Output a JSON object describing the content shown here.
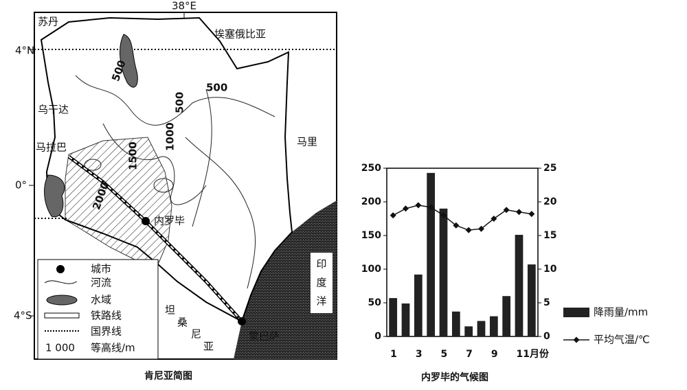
{
  "map": {
    "title": "肯尼亚简图",
    "coordinates": [
      "38°E",
      "4°N",
      "0°",
      "4°S"
    ],
    "places": [
      "苏丹",
      "埃塞俄比亚",
      "乌干达",
      "马拉巴",
      "马里",
      "内罗毕",
      "蒙巴萨"
    ],
    "ocean": [
      "印",
      "度",
      "洋"
    ],
    "tanzania": [
      "坦",
      "桑",
      "尼",
      "亚"
    ],
    "contours": [
      "500",
      "500",
      "500",
      "1000",
      "1500",
      "2000"
    ],
    "legend": [
      "城市",
      "河流",
      "水域",
      "铁路线",
      "国界线",
      "等高线/m"
    ],
    "legend_contour_sample": "1 000"
  },
  "chart_data": {
    "type": "climate",
    "title": "内罗毕的气候图",
    "categories": [
      "1",
      null,
      "3",
      null,
      "5",
      null,
      "7",
      null,
      "9",
      null,
      "11月份",
      null
    ],
    "series": [
      {
        "name": "降雨量/mm",
        "type": "bar",
        "color": "#222222",
        "values": [
          57,
          49,
          92,
          243,
          190,
          37,
          15,
          23,
          30,
          60,
          151,
          107
        ]
      },
      {
        "name": "平均气温/℃",
        "type": "line",
        "axis": "y2",
        "color": "#111111",
        "values": [
          18,
          19,
          19.5,
          19.2,
          18,
          16.5,
          15.8,
          16,
          17.5,
          18.8,
          18.5,
          18.2
        ]
      }
    ],
    "ylim": [
      0,
      250
    ],
    "yticks": [
      0,
      50,
      100,
      150,
      200,
      250
    ],
    "y2lim": [
      0,
      25
    ],
    "y2ticks": [
      0,
      5,
      10,
      15,
      20,
      25
    ],
    "grid": false
  }
}
